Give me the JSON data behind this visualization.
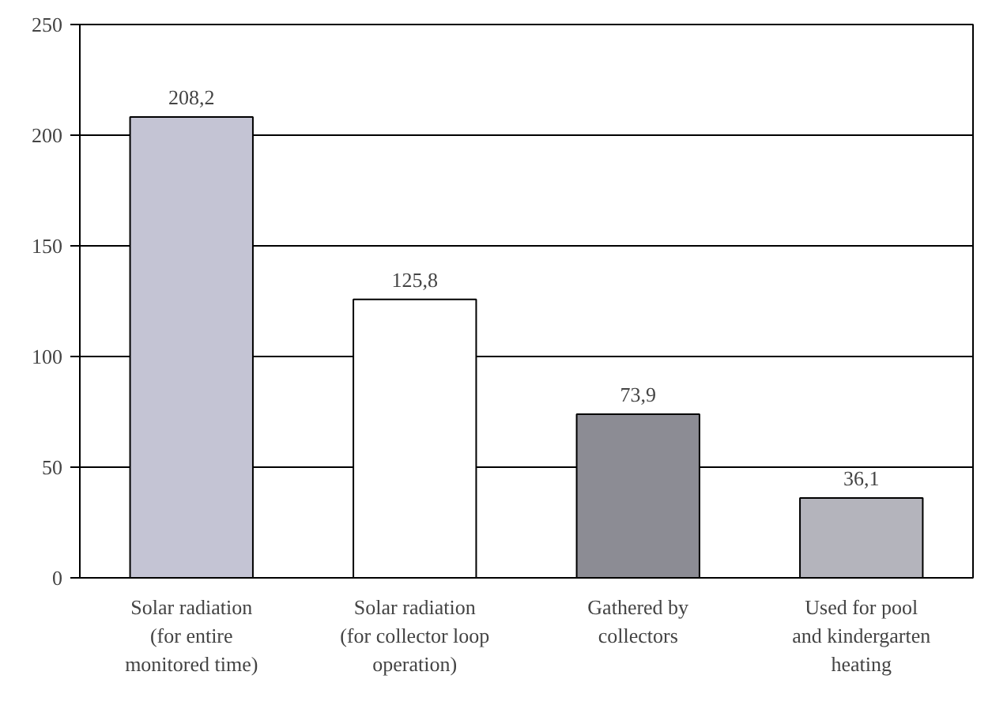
{
  "chart_data": {
    "type": "bar",
    "categories": [
      "Solar radiation\n(for entire\nmonitored time)",
      "Solar radiation\n(for collector loop\noperation)",
      "Gathered by\ncollectors",
      "Used for pool\nand kindergarten\nheating"
    ],
    "values": [
      208.2,
      125.8,
      73.9,
      36.1
    ],
    "colors": [
      "#c4c4d4",
      "#ffffff",
      "#8c8c94",
      "#b4b4bc"
    ],
    "value_labels": [
      "208,2",
      "125,8",
      "73,9",
      "36,1"
    ],
    "ylim": [
      0,
      250
    ],
    "yticks": [
      0,
      50,
      100,
      150,
      200,
      250
    ],
    "grid": "y"
  }
}
